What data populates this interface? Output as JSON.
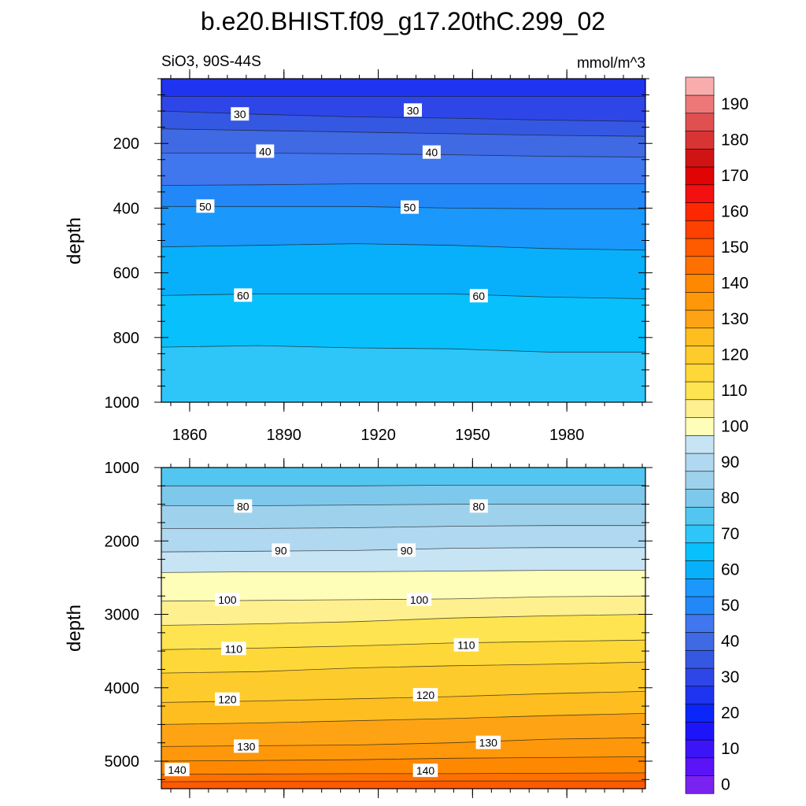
{
  "title": "b.e20.BHIST.f09_g17.20thC.299_02",
  "chart_data": {
    "type": "heatmap",
    "variable_label": "SiO3, 90S-44S",
    "units": "mmol/m^3",
    "x_ticks": [
      1860,
      1890,
      1920,
      1950,
      1980
    ],
    "xlim": [
      1851,
      2005
    ],
    "top_panel": {
      "ylabel": "depth",
      "ylim": [
        0,
        1000
      ],
      "y_ticks": [
        200,
        400,
        600,
        800,
        1000
      ],
      "contour_depths": [
        {
          "level": 25,
          "depths": [
            55,
            55,
            55,
            55,
            55,
            55
          ]
        },
        {
          "level": 30,
          "depths": [
            100,
            110,
            118,
            122,
            128,
            132
          ]
        },
        {
          "level": 35,
          "depths": [
            155,
            160,
            165,
            170,
            175,
            178
          ]
        },
        {
          "level": 40,
          "depths": [
            230,
            230,
            232,
            235,
            240,
            242
          ]
        },
        {
          "level": 45,
          "depths": [
            330,
            328,
            325,
            325,
            325,
            325
          ]
        },
        {
          "level": 50,
          "depths": [
            395,
            395,
            395,
            400,
            402,
            402
          ]
        },
        {
          "level": 55,
          "depths": [
            520,
            515,
            510,
            515,
            525,
            530
          ]
        },
        {
          "level": 60,
          "depths": [
            670,
            665,
            665,
            665,
            675,
            680
          ]
        },
        {
          "level": 65,
          "depths": [
            830,
            825,
            832,
            835,
            845,
            845
          ]
        }
      ],
      "contour_labels": [
        {
          "level": 30,
          "positions": [
            [
              1876,
              110
            ],
            [
              1931,
              98
            ]
          ]
        },
        {
          "level": 40,
          "positions": [
            [
              1884,
              225
            ],
            [
              1937,
              228
            ]
          ]
        },
        {
          "level": 50,
          "positions": [
            [
              1865,
              395
            ],
            [
              1930,
              398
            ]
          ]
        },
        {
          "level": 60,
          "positions": [
            [
              1877,
              670
            ],
            [
              1952,
              672
            ]
          ]
        }
      ]
    },
    "bottom_panel": {
      "ylabel": "depth",
      "ylim": [
        1000,
        5375
      ],
      "y_ticks": [
        1000,
        2000,
        3000,
        4000,
        5000
      ],
      "contour_depths": [
        {
          "level": 75,
          "depths": [
            1250,
            1250,
            1250,
            1240,
            1240,
            1240
          ]
        },
        {
          "level": 80,
          "depths": [
            1520,
            1520,
            1510,
            1500,
            1500,
            1500
          ]
        },
        {
          "level": 85,
          "depths": [
            1830,
            1830,
            1820,
            1800,
            1790,
            1790
          ]
        },
        {
          "level": 90,
          "depths": [
            2150,
            2140,
            2130,
            2100,
            2090,
            2090
          ]
        },
        {
          "level": 95,
          "depths": [
            2430,
            2420,
            2420,
            2410,
            2400,
            2400
          ]
        },
        {
          "level": 100,
          "depths": [
            2820,
            2810,
            2800,
            2790,
            2760,
            2750
          ]
        },
        {
          "level": 105,
          "depths": [
            3150,
            3130,
            3100,
            3050,
            3020,
            3000
          ]
        },
        {
          "level": 110,
          "depths": [
            3480,
            3460,
            3430,
            3390,
            3370,
            3350
          ]
        },
        {
          "level": 115,
          "depths": [
            3800,
            3780,
            3730,
            3700,
            3680,
            3650
          ]
        },
        {
          "level": 120,
          "depths": [
            4200,
            4180,
            4150,
            4120,
            4080,
            4050
          ]
        },
        {
          "level": 125,
          "depths": [
            4500,
            4480,
            4450,
            4420,
            4380,
            4350
          ]
        },
        {
          "level": 130,
          "depths": [
            4800,
            4790,
            4780,
            4750,
            4700,
            4680
          ]
        },
        {
          "level": 135,
          "depths": [
            5000,
            4990,
            4980,
            4960,
            4950,
            4940
          ]
        },
        {
          "level": 140,
          "depths": [
            5180,
            5175,
            5170,
            5170,
            5165,
            5160
          ]
        },
        {
          "level": 145,
          "depths": [
            5280,
            5275,
            5275,
            5270,
            5270,
            5270
          ]
        }
      ],
      "contour_labels": [
        {
          "level": 80,
          "positions": [
            [
              1877,
              1530
            ],
            [
              1952,
              1530
            ]
          ]
        },
        {
          "level": 90,
          "positions": [
            [
              1889,
              2130
            ],
            [
              1929,
              2130
            ]
          ]
        },
        {
          "level": 100,
          "positions": [
            [
              1872,
              2800
            ],
            [
              1933,
              2800
            ]
          ]
        },
        {
          "level": 110,
          "positions": [
            [
              1874,
              3470
            ],
            [
              1948,
              3420
            ]
          ]
        },
        {
          "level": 120,
          "positions": [
            [
              1872,
              4160
            ],
            [
              1935,
              4100
            ]
          ]
        },
        {
          "level": 130,
          "positions": [
            [
              1878,
              4800
            ],
            [
              1955,
              4750
            ]
          ]
        },
        {
          "level": 140,
          "positions": [
            [
              1856,
              5120
            ],
            [
              1935,
              5130
            ]
          ]
        }
      ]
    },
    "colorbar": {
      "levels": [
        0,
        5,
        10,
        15,
        20,
        25,
        30,
        35,
        40,
        45,
        50,
        55,
        60,
        65,
        70,
        75,
        80,
        85,
        90,
        95,
        100,
        105,
        110,
        115,
        120,
        125,
        130,
        135,
        140,
        145,
        150,
        155,
        160,
        165,
        170,
        175,
        180,
        185,
        190,
        195
      ],
      "tick_labels": [
        0,
        10,
        20,
        30,
        40,
        50,
        60,
        70,
        80,
        90,
        100,
        110,
        120,
        130,
        140,
        150,
        160,
        170,
        180,
        190
      ],
      "colors": [
        "#7a22f0",
        "#5a14f7",
        "#3c14f8",
        "#1e14fa",
        "#0a26f8",
        "#1e34f0",
        "#2e46e8",
        "#3558e2",
        "#3f6ae4",
        "#4076ee",
        "#2288f8",
        "#1a98fb",
        "#08b0fb",
        "#08c0fb",
        "#2ec6f8",
        "#52c6f0",
        "#7ec8ec",
        "#9ed2ec",
        "#b0d8f0",
        "#c6e4f4",
        "#fefeb8",
        "#fef08e",
        "#fee450",
        "#fed838",
        "#fecb2c",
        "#febe20",
        "#fea414",
        "#fe980a",
        "#fe8800",
        "#fe7000",
        "#fe5a00",
        "#fe4000",
        "#fe2800",
        "#f21010",
        "#e00404",
        "#d01414",
        "#d83434",
        "#e05050",
        "#ee7878",
        "#f8acac"
      ]
    }
  }
}
